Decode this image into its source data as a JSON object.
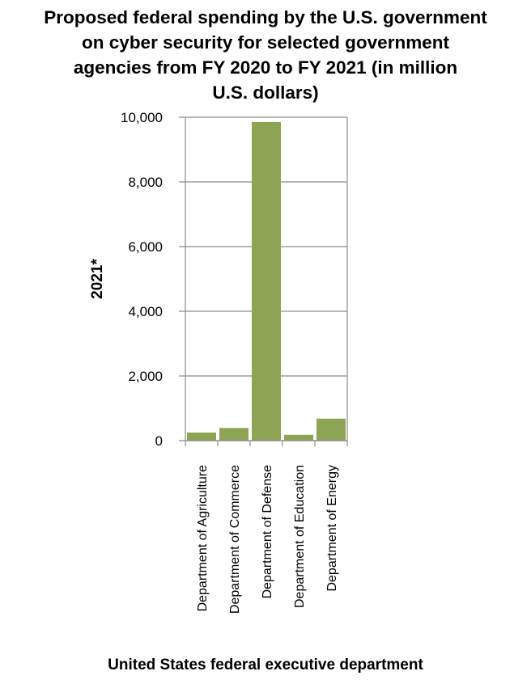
{
  "title_lines": [
    "Proposed federal spending by the U.S. government",
    "on cyber security for selected government",
    "agencies from FY 2020 to FY 2021 (in million",
    "U.S. dollars)"
  ],
  "chart_data": {
    "type": "bar",
    "title": "Proposed federal spending by the U.S. government on cyber security for selected government agencies from FY 2020 to FY 2021 (in million U.S. dollars)",
    "xlabel": "United States federal executive department",
    "ylabel": "2021*",
    "categories": [
      "Department of Agriculture",
      "Department of Commerce",
      "Department of Defense",
      "Department of Education",
      "Department of Energy"
    ],
    "series": [
      {
        "values": [
          250,
          390,
          9850,
          180,
          680
        ]
      }
    ],
    "ylim": [
      0,
      10000
    ],
    "yticks": [
      0,
      2000,
      4000,
      6000,
      8000,
      10000
    ],
    "ytick_labels": [
      "0",
      "2,000",
      "4,000",
      "6,000",
      "8,000",
      "10,000"
    ],
    "grid": true,
    "bar_color": "#8ca453"
  }
}
